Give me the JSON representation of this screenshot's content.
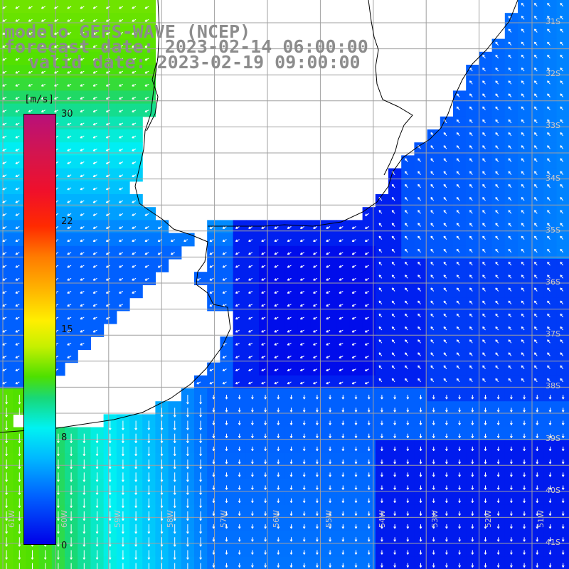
{
  "title": {
    "line1": "modelo GEFS-WAVE (NCEP)",
    "line2": "forecast date: 2023-02-14 06:00:00",
    "line3": "valid date: 2023-02-19 09:00:00"
  },
  "colorbar": {
    "units": "[m/s]",
    "ticks": [
      "30",
      "22",
      "15",
      "8",
      "0"
    ],
    "tick_values": [
      30,
      22,
      15,
      8,
      0
    ],
    "range": [
      0,
      30
    ],
    "colors": [
      "#b8107a",
      "#f0102a",
      "#ff7a00",
      "#ffef00",
      "#4ee000",
      "#00f2f2",
      "#0060ff",
      "#0000e8"
    ]
  },
  "axes": {
    "lon_labels": [
      "61W",
      "60W",
      "59W",
      "58W",
      "57W",
      "56W",
      "55W",
      "54W",
      "53W",
      "52W",
      "51W"
    ],
    "lat_labels": [
      "31S",
      "32S",
      "33S",
      "34S",
      "35S",
      "36S",
      "37S",
      "38S",
      "39S",
      "40S",
      "41S"
    ]
  },
  "colors": {
    "land": "#ffffff",
    "coast": "#000000",
    "grid": "#a0a0a0",
    "arrow": "#ffffff",
    "ocean_low": "#0000e8",
    "ocean_mid": "#00b8ff",
    "ocean_high": "#4ee000"
  }
}
